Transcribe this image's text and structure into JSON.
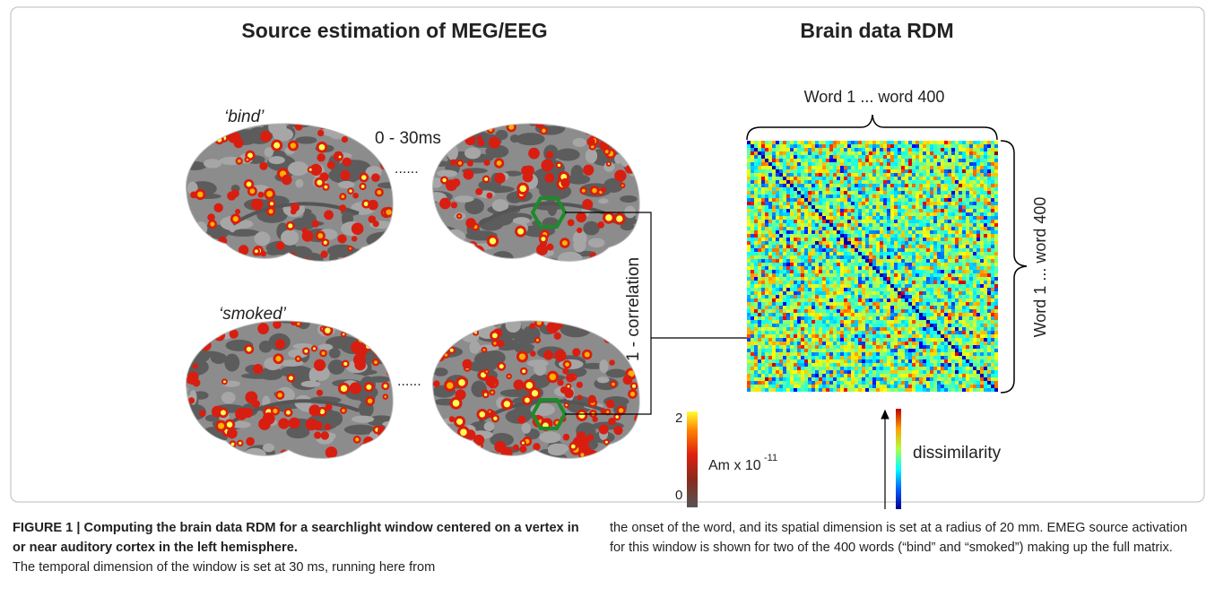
{
  "figure": {
    "left_title": "Source estimation of MEG/EEG",
    "right_title": "Brain data RDM",
    "word_top": "‘bind’",
    "time_window": "0 - 30ms",
    "ellipsis_top": "......",
    "word_bottom": "‘smoked’",
    "ellipsis_bottom": "......",
    "correlation_label": "1 - correlation",
    "matrix_top_label": "Word 1 ... word 400",
    "matrix_side_label": "Word 1 ... word 400",
    "colorbar_max": 2,
    "colorbar_min": 0,
    "colorbar_unit": "Am x 10",
    "colorbar_exponent": "-11",
    "dissimilarity_label": "dissimilarity"
  },
  "caption": {
    "label": "FIGURE 1 | Computing the brain data RDM for a searchlight window centered on a vertex in or near auditory cortex in the left hemisphere.",
    "body_left": "The temporal dimension of the window is set at 30 ms, running here from",
    "body_right": "the onset of the word, and its spatial dimension is set at a radius of 20 mm. EMEG source activation for this window is shown for two of the 400 words (“bind” and “smoked”) making up the full matrix."
  }
}
